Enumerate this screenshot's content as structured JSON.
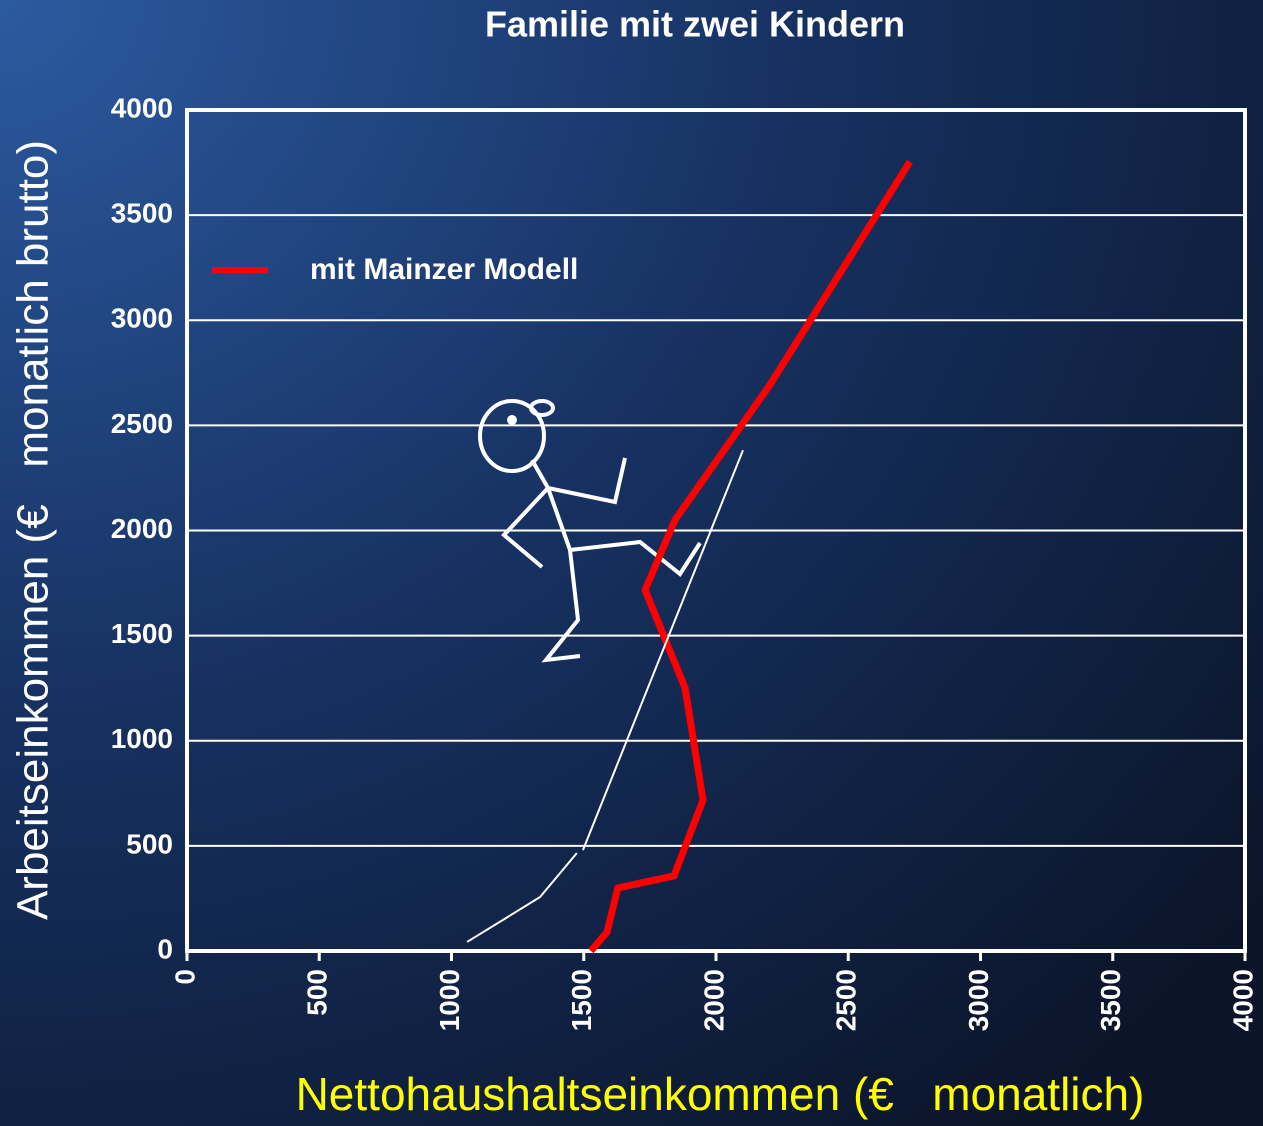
{
  "chart_data": {
    "type": "line",
    "title": "Familie mit zwei Kindern",
    "xlabel": "Nettohaushaltseinkommen (€   monatlich)",
    "ylabel": "Arbeitseinkommen (€   monatlich brutto)",
    "xlim": [
      0,
      4000
    ],
    "ylim": [
      0,
      4000
    ],
    "xticks": [
      0,
      500,
      1000,
      1500,
      2000,
      2500,
      3000,
      3500,
      4000
    ],
    "yticks": [
      0,
      500,
      1000,
      1500,
      2000,
      2500,
      3000,
      3500,
      4000
    ],
    "grid": true,
    "legend": "upper left",
    "series": [
      {
        "name": "mit Mainzer Modell",
        "color": "#ff0000",
        "x": [
          1527,
          1588,
          1629,
          1841,
          1951,
          1883,
          1732,
          1845,
          2204,
          2733
        ],
        "values": [
          0,
          90,
          300,
          357,
          718,
          1251,
          1717,
          2050,
          2693,
          3754
        ]
      },
      {
        "color": "#ffffff",
        "x": [
          1059,
          1335,
          1474,
          null,
          1497,
          2102
        ],
        "values": [
          43,
          257,
          466,
          null,
          480,
          2382
        ]
      }
    ]
  }
}
